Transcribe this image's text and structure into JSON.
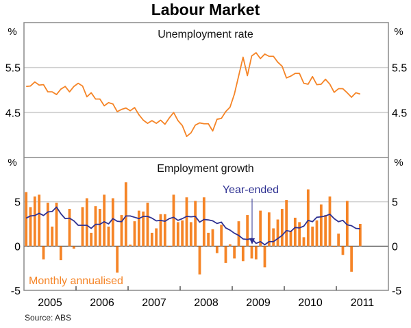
{
  "title": "Labour Market",
  "source": "Source: ABS",
  "colors": {
    "orange": "#f58426",
    "blue": "#2e3192",
    "grid": "#cfcfcf",
    "frame": "#8a8a8a"
  },
  "chart_data": [
    {
      "type": "line",
      "title": "Unemployment rate",
      "ylabel_left": "%",
      "ylabel_right": "%",
      "ylim": [
        3.5,
        6.5
      ],
      "yticks": [
        4.5,
        5.5
      ],
      "ytick_labels": [
        "4.5",
        "5.5"
      ],
      "x_start": "Jan 2005",
      "frequency": "monthly",
      "series": [
        {
          "name": "Unemployment rate",
          "values": [
            5.08,
            5.09,
            5.18,
            5.11,
            5.12,
            4.96,
            4.96,
            4.9,
            5.02,
            5.08,
            4.96,
            5.08,
            5.15,
            5.09,
            4.85,
            4.94,
            4.8,
            4.8,
            4.65,
            4.72,
            4.69,
            4.52,
            4.57,
            4.6,
            4.54,
            4.61,
            4.45,
            4.33,
            4.26,
            4.32,
            4.26,
            4.33,
            4.24,
            4.38,
            4.5,
            4.32,
            4.21,
            3.97,
            4.05,
            4.22,
            4.27,
            4.25,
            4.25,
            4.09,
            4.35,
            4.37,
            4.52,
            4.62,
            4.91,
            5.32,
            5.73,
            5.32,
            5.76,
            5.83,
            5.7,
            5.8,
            5.75,
            5.75,
            5.62,
            5.53,
            5.27,
            5.31,
            5.37,
            5.37,
            5.15,
            5.13,
            5.3,
            5.12,
            5.13,
            5.24,
            5.13,
            4.95,
            5.03,
            5.03,
            4.94,
            4.84,
            4.94,
            4.91
          ]
        }
      ]
    },
    {
      "type": "bar",
      "title": "Employment growth",
      "ylabel_left": "%",
      "ylabel_right": "%",
      "ylim": [
        -5,
        10
      ],
      "yticks": [
        -5,
        0,
        5
      ],
      "ytick_labels": [
        "-5",
        "0",
        "5"
      ],
      "xtick_labels": [
        "2005",
        "2006",
        "2007",
        "2008",
        "2009",
        "2010",
        "2011"
      ],
      "x_start": "Jan 2005",
      "frequency": "monthly",
      "series": [
        {
          "name": "Monthly annualised",
          "type": "bar",
          "values": [
            6.1,
            4.4,
            5.6,
            5.8,
            -1.5,
            4.9,
            2.2,
            4.9,
            -1.6,
            0,
            4.2,
            -0.3,
            0,
            4.4,
            5.4,
            1.5,
            4.5,
            4.2,
            5.8,
            2.2,
            5.4,
            -3.0,
            3.5,
            7.2,
            0.15,
            2.8,
            4.0,
            3.9,
            4.9,
            1.5,
            2.0,
            3.6,
            3.6,
            -0.1,
            5.8,
            2.7,
            2.9,
            5.5,
            2.7,
            5.1,
            -3.2,
            5.5,
            1.5,
            1.9,
            -0.8,
            2.4,
            -1.9,
            0.2,
            -1.4,
            2.8,
            -1.7,
            3.5,
            -1.4,
            -1.5,
            4.0,
            -2.4,
            3.8,
            2.0,
            3.0,
            4.2,
            5.2,
            1.7,
            3.2,
            2.7,
            1.0,
            6.4,
            2.2,
            2.9,
            4.7,
            3.5,
            5.6,
            -0.1,
            1.4,
            -1.0,
            5.1,
            -2.9,
            0,
            2.5
          ]
        },
        {
          "name": "Year-ended",
          "type": "line",
          "values": [
            3.15,
            3.4,
            3.45,
            3.7,
            3.45,
            3.85,
            3.9,
            4.4,
            3.65,
            3.1,
            3.15,
            2.85,
            2.35,
            2.35,
            2.35,
            2.0,
            2.45,
            2.45,
            2.75,
            2.5,
            3.1,
            2.8,
            2.75,
            3.4,
            3.4,
            3.25,
            3.1,
            3.35,
            3.35,
            3.15,
            2.85,
            2.9,
            2.8,
            3.1,
            3.25,
            2.9,
            3.1,
            3.35,
            3.3,
            3.35,
            2.7,
            3.0,
            2.95,
            2.85,
            2.55,
            2.7,
            2.05,
            1.8,
            1.45,
            1.2,
            0.8,
            0.75,
            0.85,
            0.3,
            0.5,
            0.15,
            0.5,
            0.5,
            0.85,
            1.2,
            1.75,
            1.65,
            2.1,
            2.05,
            2.25,
            2.9,
            2.75,
            3.25,
            3.3,
            3.4,
            3.6,
            3.1,
            2.75,
            2.9,
            2.4,
            2.3,
            2.0,
            1.95
          ]
        }
      ],
      "annotations": [
        "Year-ended",
        "Monthly annualised"
      ]
    }
  ]
}
